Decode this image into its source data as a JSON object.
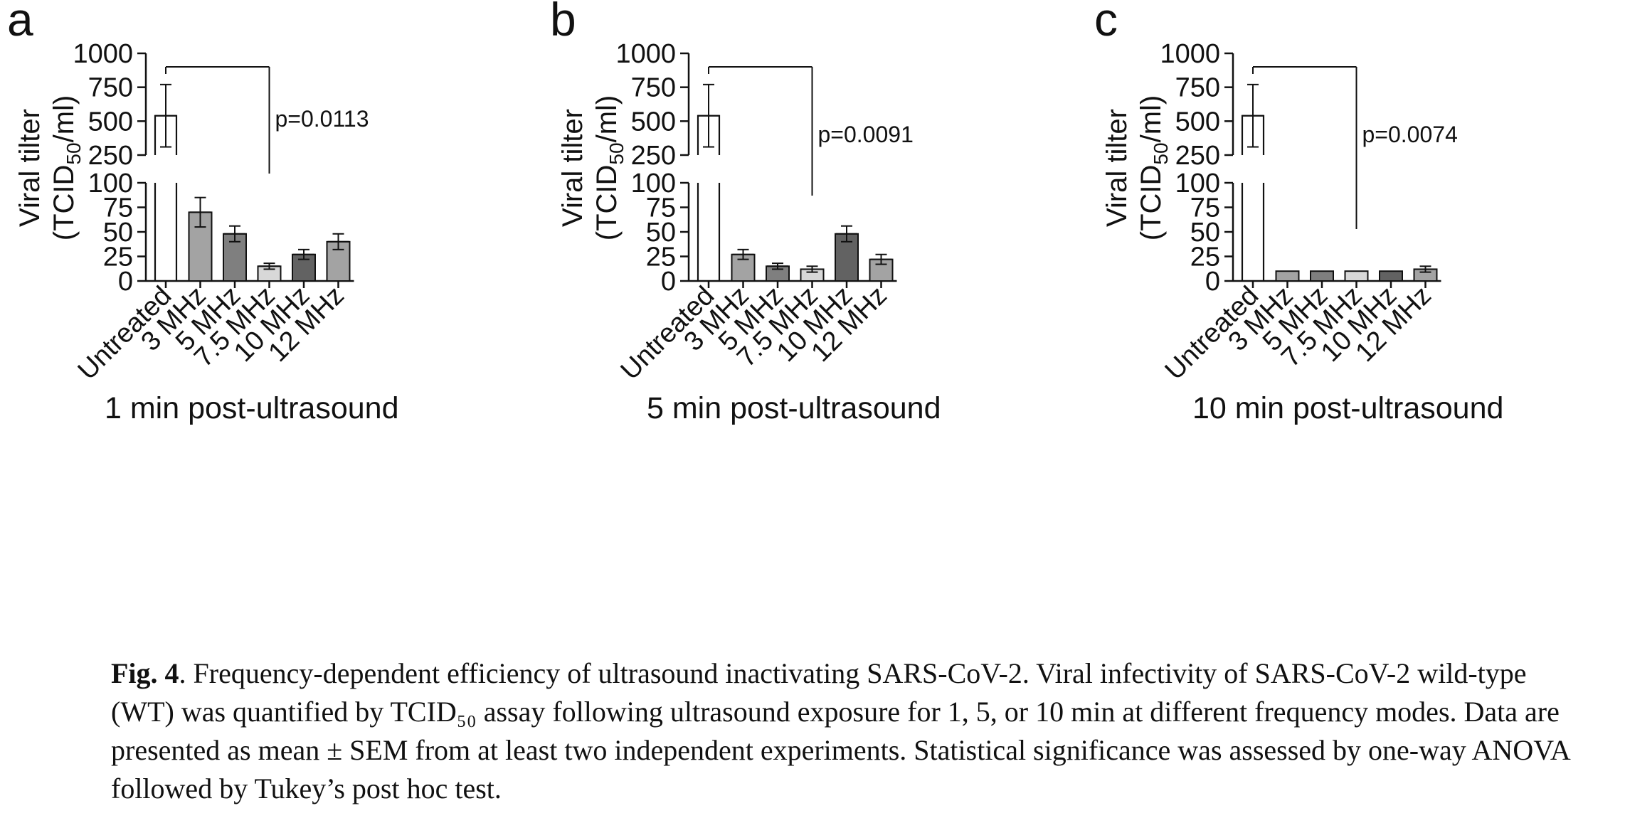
{
  "chart_data": [
    {
      "type": "bar",
      "panel": "a",
      "title": "1 min post-ultrasound",
      "ylabel_line1": "Viral tilter",
      "ylabel_line2_prefix": "(TCID",
      "ylabel_line2_sub": "50",
      "ylabel_line2_suffix": "/ml)",
      "ylim_lower": [
        0,
        100
      ],
      "ylim_upper": [
        250,
        1000
      ],
      "yticks_lower": [
        0,
        25,
        50,
        75,
        100
      ],
      "yticks_upper": [
        250,
        500,
        750,
        1000
      ],
      "categories": [
        "Untreated",
        "3 MHz",
        "5 MHz",
        "7.5 MHz",
        "10 MHz",
        "12 MHz"
      ],
      "values": [
        540,
        70,
        48,
        15,
        27,
        40
      ],
      "errors": [
        230,
        15,
        8,
        3,
        5,
        8
      ],
      "colors": [
        "#ffffff",
        "#a3a3a3",
        "#7f7f7f",
        "#d8d8d8",
        "#626262",
        "#a3a3a3"
      ],
      "significance": "p=0.0113"
    },
    {
      "type": "bar",
      "panel": "b",
      "title": "5 min post-ultrasound",
      "ylabel_line1": "Viral tilter",
      "ylabel_line2_prefix": "(TCID",
      "ylabel_line2_sub": "50",
      "ylabel_line2_suffix": "/ml)",
      "ylim_lower": [
        0,
        100
      ],
      "ylim_upper": [
        250,
        1000
      ],
      "yticks_lower": [
        0,
        25,
        50,
        75,
        100
      ],
      "yticks_upper": [
        250,
        500,
        750,
        1000
      ],
      "categories": [
        "Untreated",
        "3 MHz",
        "5 MHz",
        "7.5 MHz",
        "10 MHz",
        "12 MHz"
      ],
      "values": [
        540,
        27,
        15,
        12,
        48,
        22
      ],
      "errors": [
        230,
        5,
        3,
        3,
        8,
        5
      ],
      "colors": [
        "#ffffff",
        "#a3a3a3",
        "#7f7f7f",
        "#d8d8d8",
        "#626262",
        "#a3a3a3"
      ],
      "significance": "p=0.0091"
    },
    {
      "type": "bar",
      "panel": "c",
      "title": "10 min post-ultrasound",
      "ylabel_line1": "Viral tilter",
      "ylabel_line2_prefix": "(TCID",
      "ylabel_line2_sub": "50",
      "ylabel_line2_suffix": "/ml)",
      "ylim_lower": [
        0,
        100
      ],
      "ylim_upper": [
        250,
        1000
      ],
      "yticks_lower": [
        0,
        25,
        50,
        75,
        100
      ],
      "yticks_upper": [
        250,
        500,
        750,
        1000
      ],
      "categories": [
        "Untreated",
        "3 MHz",
        "5 MHz",
        "7.5 MHz",
        "10 MHz",
        "12 MHz"
      ],
      "values": [
        540,
        10,
        10,
        10,
        10,
        12
      ],
      "errors": [
        230,
        0,
        0,
        0,
        0,
        3
      ],
      "colors": [
        "#ffffff",
        "#a3a3a3",
        "#7f7f7f",
        "#d8d8d8",
        "#626262",
        "#a3a3a3"
      ],
      "significance": "p=0.0074"
    }
  ],
  "caption": {
    "label": "Fig. 4",
    "text": ".  Frequency-dependent efficiency of ultrasound inactivating SARS-CoV-2. Viral infectivity of SARS-CoV-2 wild-type (WT) was quantified by TCID₅₀ assay following ultrasound exposure for 1, 5, or 10 min at different frequency modes. Data are presented as mean ± SEM from at least two independent experiments. Statistical significance was assessed by one-way ANOVA followed by Tukey’s post hoc test."
  }
}
